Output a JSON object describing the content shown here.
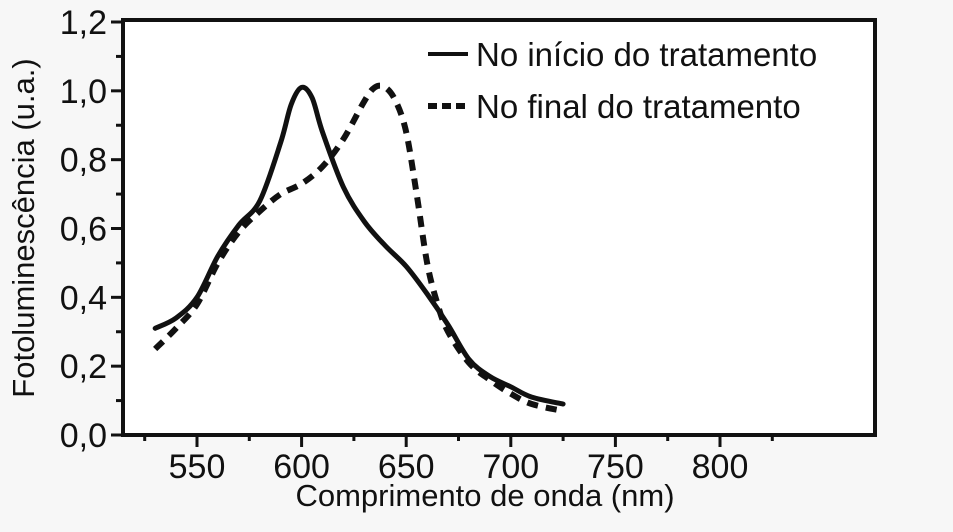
{
  "chart_data": {
    "type": "line",
    "title": "",
    "xlabel": "Comprimento de onda (nm)",
    "ylabel": "Fotoluminescência (u.a.)",
    "xlim": [
      528,
      830
    ],
    "ylim": [
      0.0,
      1.2
    ],
    "x_ticks": [
      550,
      600,
      650,
      700,
      750,
      800
    ],
    "x_tick_labels": [
      "550",
      "600",
      "650",
      "700",
      "750",
      "800"
    ],
    "y_ticks": [
      0.0,
      0.2,
      0.4,
      0.6,
      0.8,
      1.0,
      1.2
    ],
    "y_tick_labels": [
      "0,0",
      "0,2",
      "0,4",
      "0,6",
      "0,8",
      "1,0",
      "1,2"
    ],
    "grid": false,
    "legend_position": "upper right",
    "series": [
      {
        "name": "No início do tratamento",
        "style": "solid",
        "x": [
          530,
          540,
          550,
          560,
          570,
          580,
          590,
          595,
          600,
          605,
          610,
          620,
          630,
          640,
          650,
          660,
          670,
          680,
          690,
          700,
          710,
          725
        ],
        "y": [
          0.31,
          0.34,
          0.4,
          0.52,
          0.61,
          0.68,
          0.85,
          0.96,
          1.01,
          0.98,
          0.88,
          0.72,
          0.62,
          0.55,
          0.49,
          0.41,
          0.32,
          0.22,
          0.17,
          0.14,
          0.11,
          0.09
        ]
      },
      {
        "name": "No final do tratamento",
        "style": "dashed",
        "x": [
          530,
          540,
          550,
          560,
          570,
          580,
          590,
          600,
          610,
          620,
          630,
          635,
          640,
          645,
          650,
          655,
          660,
          665,
          670,
          680,
          690,
          700,
          710,
          725
        ],
        "y": [
          0.25,
          0.31,
          0.38,
          0.5,
          0.59,
          0.65,
          0.7,
          0.73,
          0.78,
          0.86,
          0.97,
          1.01,
          1.01,
          0.97,
          0.88,
          0.7,
          0.5,
          0.38,
          0.3,
          0.21,
          0.16,
          0.12,
          0.09,
          0.07
        ]
      }
    ]
  },
  "legend": {
    "items": [
      {
        "label": "No início do tratamento",
        "style": "solid"
      },
      {
        "label": "No final do tratamento",
        "style": "dashed"
      }
    ]
  }
}
